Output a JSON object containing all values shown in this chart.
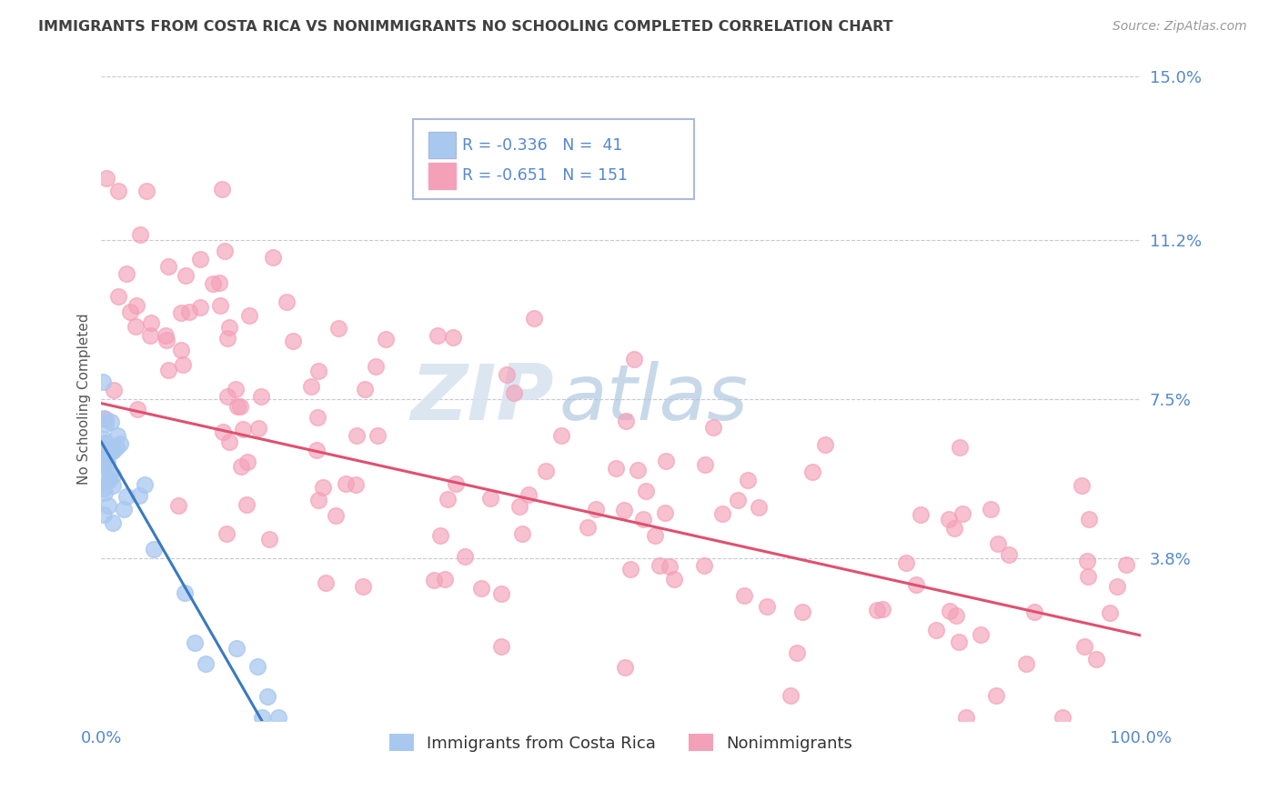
{
  "title": "IMMIGRANTS FROM COSTA RICA VS NONIMMIGRANTS NO SCHOOLING COMPLETED CORRELATION CHART",
  "source": "Source: ZipAtlas.com",
  "ylabel": "No Schooling Completed",
  "xlim": [
    0.0,
    1.0
  ],
  "ylim": [
    0.0,
    0.15
  ],
  "yticks": [
    0.038,
    0.075,
    0.112,
    0.15
  ],
  "ytick_labels": [
    "3.8%",
    "7.5%",
    "11.2%",
    "15.0%"
  ],
  "series1_color": "#a8c8f0",
  "series2_color": "#f4a0b8",
  "line1_color": "#3a7abf",
  "line2_color": "#e05070",
  "background_color": "#ffffff",
  "title_color": "#404040",
  "axis_label_color": "#5588cc",
  "grid_color": "#c8c8d8",
  "legend_r1": "R = -0.336",
  "legend_n1": "N =  41",
  "legend_r2": "R = -0.651",
  "legend_n2": "N = 151",
  "watermark_zip": "ZIP",
  "watermark_atlas": "atlas",
  "series1_label": "Immigrants from Costa Rica",
  "series2_label": "Nonimmigrants",
  "line1_intercept": 0.065,
  "line1_slope": -0.42,
  "line1_xend": 0.17,
  "line2_intercept": 0.074,
  "line2_slope": -0.054
}
